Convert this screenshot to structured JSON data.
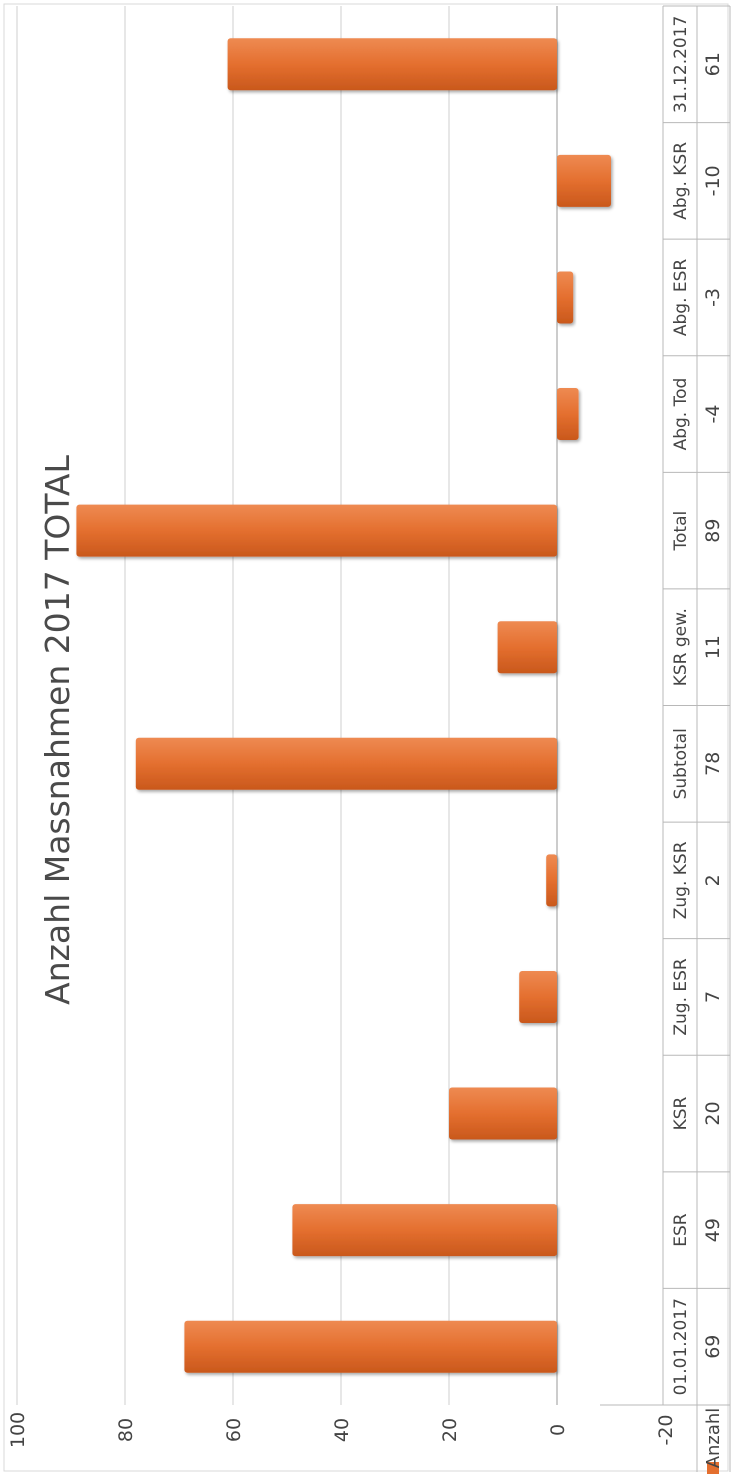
{
  "chart_data": {
    "type": "bar",
    "title": "Anzahl Massnahmen 2017   TOTAL",
    "categories": [
      "01.01.2017",
      "ESR",
      "KSR",
      "Zug. ESR",
      "Zug. KSR",
      "Subtotal",
      "KSR gew.",
      "Total",
      "Abg. Tod",
      "Abg. ESR",
      "Abg. KSR",
      "31.12.2017"
    ],
    "series": [
      {
        "name": "Anzahl",
        "values": [
          69,
          49,
          20,
          7,
          2,
          78,
          11,
          89,
          -4,
          -3,
          -10,
          61
        ]
      }
    ],
    "value_labels": [
      "69",
      "49",
      "20",
      "7",
      "2",
      "78",
      "11",
      "89",
      "-4",
      "-3",
      "-10",
      "61"
    ],
    "yticks": [
      "-20",
      "0",
      "20",
      "40",
      "60",
      "80",
      "100"
    ],
    "ylim": [
      -20,
      100
    ],
    "grid": true,
    "data_table": true,
    "legend_position": "bottom",
    "orientation": "rotated",
    "colors": {
      "bar": "#e46f2f",
      "bar_dark": "#c55a1e",
      "grid": "#cfcfcf",
      "axis": "#999999"
    }
  }
}
